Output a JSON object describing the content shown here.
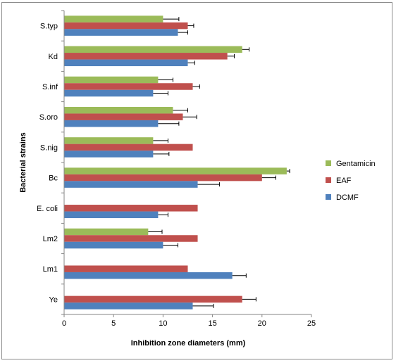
{
  "chart_data": {
    "type": "bar",
    "orientation": "horizontal",
    "title": "",
    "xlabel": "Inhibition zone diameters (mm)",
    "ylabel": "Bacterial strains",
    "xlim": [
      0,
      25
    ],
    "xticks": [
      0,
      5,
      10,
      15,
      20,
      25
    ],
    "grid": false,
    "legend_position": "right",
    "categories": [
      "S.typ",
      "Kd",
      "S.inf",
      "S.oro",
      "S.nig",
      "Bc",
      "E. coli",
      "Lm2",
      "Lm1",
      "Ye"
    ],
    "series": [
      {
        "name": "Gentamicin",
        "color": "#9bbb59",
        "values": [
          10.0,
          18.0,
          9.5,
          11.0,
          9.0,
          22.5,
          0,
          8.5,
          0,
          0
        ],
        "errors": [
          1.6,
          0.7,
          1.5,
          1.5,
          1.5,
          0.3,
          0,
          1.4,
          0,
          0
        ]
      },
      {
        "name": "EAF",
        "color": "#c0504d",
        "values": [
          12.5,
          16.5,
          13.0,
          12.0,
          13.0,
          20.0,
          13.5,
          13.5,
          12.5,
          18.0
        ],
        "errors": [
          0.6,
          0.7,
          0.7,
          1.4,
          0,
          1.4,
          0,
          0,
          0,
          1.4
        ]
      },
      {
        "name": "DCMF",
        "color": "#4f81bd",
        "values": [
          11.5,
          12.5,
          9.0,
          9.5,
          9.0,
          13.5,
          9.5,
          10.0,
          17.0,
          13.0
        ],
        "errors": [
          1.0,
          0.7,
          1.5,
          2.1,
          1.6,
          2.2,
          1.0,
          1.5,
          1.4,
          2.1
        ]
      }
    ]
  }
}
